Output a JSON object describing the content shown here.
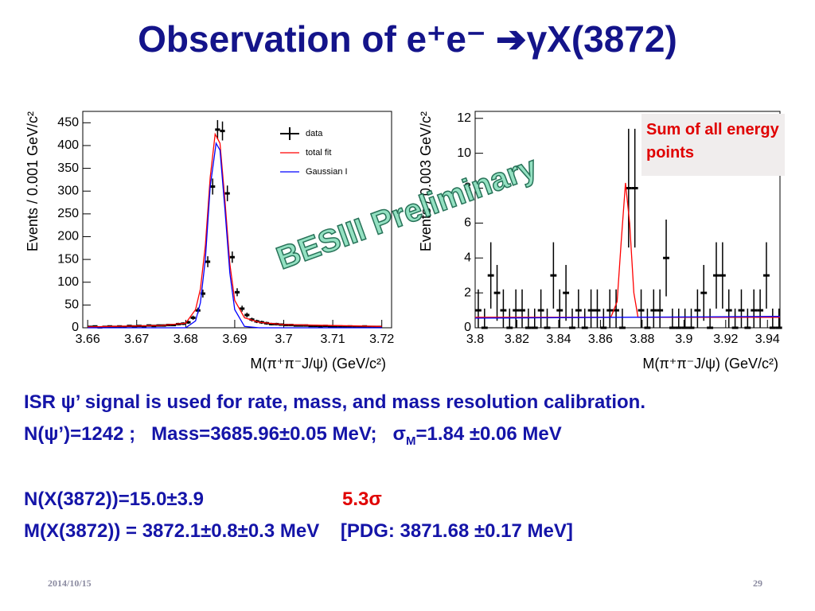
{
  "title": "Observation of e⁺e⁻ ➔γX(3872)",
  "chart_data": [
    {
      "type": "errorbar",
      "x_label": "M(π⁺π⁻J/ψ) (GeV/c²)",
      "y_label": "Events / 0.001 GeV/c²",
      "xlim": [
        3.659,
        3.722
      ],
      "ylim": [
        0,
        475
      ],
      "xticks": [
        3.66,
        3.67,
        3.68,
        3.69,
        3.7,
        3.71,
        3.72
      ],
      "yticks": [
        0,
        50,
        100,
        150,
        200,
        250,
        300,
        350,
        400,
        450
      ],
      "legend": "upper right",
      "series": [
        {
          "name": "data",
          "color": "#000000",
          "x": [
            3.6605,
            3.6615,
            3.6625,
            3.6635,
            3.6645,
            3.6655,
            3.6665,
            3.6675,
            3.6685,
            3.6695,
            3.6705,
            3.6715,
            3.6725,
            3.6735,
            3.6745,
            3.6755,
            3.6765,
            3.6775,
            3.6785,
            3.6795,
            3.6805,
            3.6815,
            3.6825,
            3.6835,
            3.6845,
            3.6855,
            3.6865,
            3.6875,
            3.6885,
            3.6895,
            3.6905,
            3.6915,
            3.6925,
            3.6935,
            3.6945,
            3.6955,
            3.6965,
            3.6975,
            3.6985,
            3.6995,
            3.7005,
            3.7015,
            3.7025,
            3.7035,
            3.7045,
            3.7055,
            3.7065,
            3.7075,
            3.7085,
            3.7095,
            3.7105,
            3.7115,
            3.7125,
            3.7135,
            3.7145,
            3.7155,
            3.7165,
            3.7175,
            3.7185,
            3.7195
          ],
          "values": [
            2,
            3,
            1,
            2,
            3,
            2,
            3,
            2,
            4,
            3,
            4,
            3,
            5,
            4,
            5,
            5,
            6,
            6,
            8,
            9,
            12,
            22,
            38,
            75,
            145,
            310,
            435,
            432,
            295,
            155,
            78,
            42,
            28,
            18,
            14,
            12,
            10,
            8,
            8,
            7,
            6,
            6,
            5,
            5,
            5,
            4,
            4,
            3,
            4,
            3,
            3,
            3,
            2,
            3,
            2,
            2,
            3,
            2,
            2,
            2
          ],
          "errors": [
            1.4,
            1.7,
            1,
            1.4,
            1.7,
            1.4,
            1.7,
            1.4,
            2,
            1.7,
            2,
            1.7,
            2.2,
            2,
            2.2,
            2.2,
            2.4,
            2.4,
            2.8,
            3,
            3.5,
            4.7,
            6.2,
            8.7,
            12,
            17.6,
            20.9,
            20.8,
            17.2,
            12.4,
            8.8,
            6.5,
            5.3,
            4.2,
            3.7,
            3.5,
            3.2,
            2.8,
            2.8,
            2.6,
            2.4,
            2.4,
            2.2,
            2.2,
            2.2,
            2,
            2,
            1.7,
            2,
            1.7,
            1.7,
            1.7,
            1.4,
            1.7,
            1.4,
            1.4,
            1.7,
            1.4,
            1.4,
            1.4
          ]
        },
        {
          "name": "total fit",
          "color": "#ff0000",
          "type": "line",
          "x": [
            3.66,
            3.675,
            3.68,
            3.682,
            3.683,
            3.684,
            3.685,
            3.686,
            3.687,
            3.688,
            3.689,
            3.69,
            3.692,
            3.695,
            3.7,
            3.72
          ],
          "values": [
            2,
            5,
            10,
            40,
            85,
            180,
            330,
            425,
            405,
            280,
            140,
            60,
            22,
            12,
            7,
            3
          ]
        },
        {
          "name": "Gaussian I",
          "color": "#0000ff",
          "type": "line",
          "x": [
            3.66,
            3.68,
            3.682,
            3.683,
            3.684,
            3.685,
            3.6862,
            3.687,
            3.688,
            3.689,
            3.69,
            3.692,
            3.695,
            3.72
          ],
          "values": [
            0,
            0,
            15,
            55,
            150,
            310,
            405,
            390,
            260,
            120,
            40,
            3,
            0,
            0
          ]
        }
      ]
    },
    {
      "type": "errorbar",
      "x_label": "M(π⁺π⁻J/ψ) (GeV/c²)",
      "y_label": "Events / 0.003 GeV/c²",
      "xlim": [
        3.8,
        3.946
      ],
      "ylim": [
        0,
        12.4
      ],
      "xticks": [
        3.8,
        3.82,
        3.84,
        3.86,
        3.88,
        3.9,
        3.92,
        3.94
      ],
      "yticks": [
        0,
        2,
        4,
        6,
        8,
        10,
        12
      ],
      "series": [
        {
          "color": "#000000",
          "x": [
            3.8015,
            3.8045,
            3.8075,
            3.8105,
            3.8135,
            3.8165,
            3.8195,
            3.8225,
            3.8255,
            3.8285,
            3.8315,
            3.8345,
            3.8375,
            3.8405,
            3.8435,
            3.8465,
            3.8495,
            3.8525,
            3.8555,
            3.8585,
            3.8615,
            3.8645,
            3.8675,
            3.8705,
            3.8735,
            3.8765,
            3.8795,
            3.8825,
            3.8855,
            3.8885,
            3.8915,
            3.8945,
            3.8975,
            3.9005,
            3.9035,
            3.9065,
            3.9095,
            3.9125,
            3.9155,
            3.9185,
            3.9215,
            3.9245,
            3.9275,
            3.9305,
            3.9335,
            3.9365,
            3.9395,
            3.9425,
            3.9455
          ],
          "values": [
            1,
            0,
            3,
            2,
            1,
            0,
            1,
            1,
            0,
            0,
            1,
            0,
            3,
            1,
            2,
            0,
            1,
            0,
            1,
            1,
            0,
            1,
            1,
            0,
            8,
            8,
            1,
            0,
            1,
            1,
            4,
            0,
            0,
            0,
            0,
            1,
            2,
            0,
            3,
            3,
            1,
            0,
            1,
            0,
            1,
            1,
            3,
            0,
            0
          ],
          "errors": [
            1.2,
            1.1,
            1.9,
            1.6,
            1.2,
            1.1,
            1.2,
            1.2,
            1.1,
            1.1,
            1.2,
            1.1,
            1.9,
            1.2,
            1.6,
            1.1,
            1.2,
            1.1,
            1.2,
            1.2,
            1.1,
            1.2,
            1.2,
            1.1,
            3.4,
            3.4,
            1.2,
            1.1,
            1.2,
            1.2,
            2.2,
            1.1,
            1.1,
            1.1,
            1.1,
            1.2,
            1.6,
            1.1,
            1.9,
            1.9,
            1.2,
            1.1,
            1.2,
            1.1,
            1.2,
            1.2,
            1.9,
            1.1,
            1.1
          ]
        },
        {
          "color": "#ff0000",
          "type": "line",
          "x": [
            3.8,
            3.865,
            3.868,
            3.87,
            3.872,
            3.874,
            3.876,
            3.878,
            3.946
          ],
          "values": [
            0.6,
            0.6,
            1.5,
            5,
            8.3,
            6,
            2,
            0.6,
            0.6
          ]
        },
        {
          "color": "#0000ff",
          "type": "line",
          "x": [
            3.8,
            3.946
          ],
          "values": [
            0.55,
            0.65
          ]
        }
      ]
    }
  ],
  "annotation": "Sum of all energy points",
  "watermark": "BESIII Preliminary",
  "body": {
    "line1": "ISR ψ’ signal is used for rate, mass, and mass resolution calibration.",
    "line2": {
      "text": "N(ψ’)=1242 ;   Mass=3685.96±0.05 MeV;",
      "sigma": "σ",
      "sub": "M",
      "rest": "=1.84 ±0.06 MeV"
    },
    "line3": {
      "text": "N(X(3872))=15.0±3.9",
      "significance": "5.3σ"
    },
    "line4": "M(X(3872)) = 3872.1±0.8±0.3 MeV    [PDG: 3871.68 ±0.17 MeV]"
  },
  "footer": {
    "date": "2014/10/15",
    "page": "29"
  }
}
